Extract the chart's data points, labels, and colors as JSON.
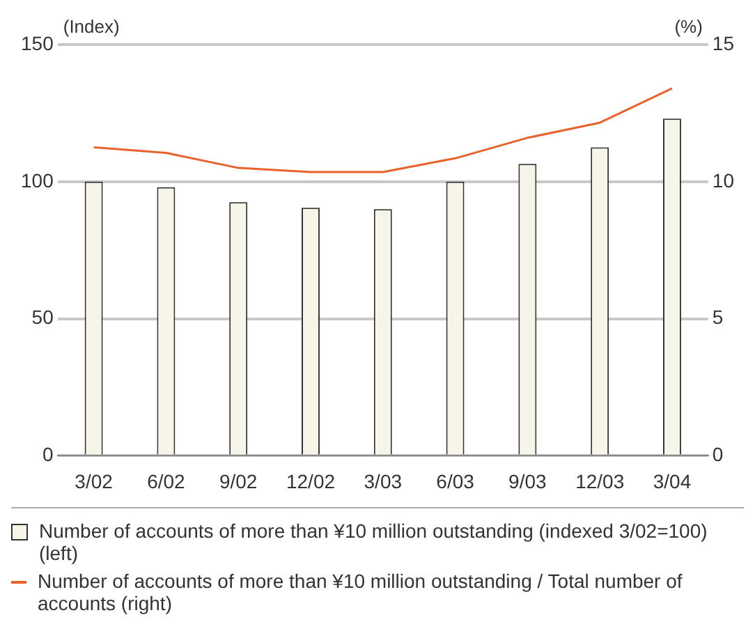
{
  "chart_data": {
    "type": "bar",
    "categories": [
      "3/02",
      "6/02",
      "9/02",
      "12/02",
      "3/03",
      "6/03",
      "9/03",
      "12/03",
      "3/04"
    ],
    "ylabel": "(Index)",
    "y2label": "(%)",
    "series": [
      {
        "name": "Number of accounts of more than ¥10 million outstanding (indexed 3/02=100) (left)",
        "color": "#f7f5e8",
        "values": [
          100,
          98,
          92.5,
          90.5,
          90,
          100,
          106.5,
          112.5,
          123
        ]
      },
      {
        "name": "Number of accounts of more than ¥10 million outstanding / Total number of accounts (right)",
        "type": "line",
        "axis": "y2",
        "color": "#e8622a",
        "values": [
          11.25,
          11.05,
          10.5,
          10.35,
          10.35,
          10.85,
          11.6,
          12.15,
          13.4
        ]
      }
    ],
    "ylim": [
      0,
      150
    ],
    "yticks": [
      0,
      50,
      100,
      150
    ],
    "y2lim": [
      0,
      15
    ],
    "y2ticks": [
      0,
      5,
      10,
      15
    ],
    "grid": "y",
    "legend": "bottom",
    "marker": "none"
  }
}
